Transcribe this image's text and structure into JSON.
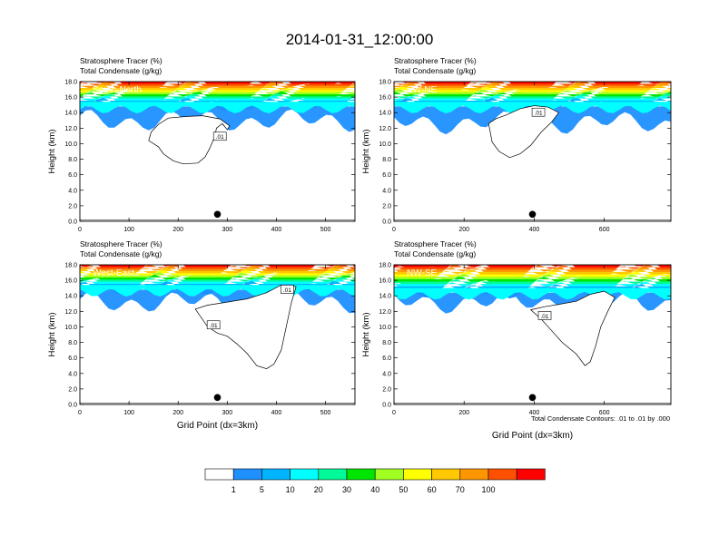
{
  "title": "2014-01-31_12:00:00",
  "footnote": "Total Condensate Contours: .01 to .01 by .000",
  "colorbar": {
    "labels": [
      "1",
      "5",
      "10",
      "20",
      "30",
      "40",
      "50",
      "60",
      "70",
      "100"
    ],
    "colors": [
      "#ffffff",
      "#1e90ff",
      "#00b4ff",
      "#00ffff",
      "#00fa9a",
      "#00e600",
      "#a0ff20",
      "#ffff00",
      "#ffc800",
      "#ff9600",
      "#ff5000",
      "#ff0000"
    ]
  },
  "chart_data": [
    {
      "type": "contour-section",
      "panel": "top-left",
      "label": "South-North",
      "subtitle_1": "Stratosphere Tracer   (%)",
      "subtitle_2": "Total Condensate   (g/kg)",
      "ylabel": "Height (km)",
      "xlabel": "",
      "xlim": [
        0,
        560
      ],
      "xticks": [
        "0",
        "100",
        "200",
        "300",
        "400",
        "500"
      ],
      "ylim": [
        0,
        18
      ],
      "yticks": [
        "0.0",
        "2.0",
        "4.0",
        "6.0",
        "8.0",
        "10.0",
        "12.0",
        "14.0",
        "16.0",
        "18.0"
      ],
      "marker_x": 280,
      "contour_label": ".01",
      "contour_label_at": [
        285,
        10.9
      ],
      "tracer_base_km": 15.0,
      "cloud_base_km": 11.8,
      "condensate_outline": [
        [
          140,
          10.4
        ],
        [
          160,
          9.6
        ],
        [
          170,
          8.7
        ],
        [
          190,
          7.8
        ],
        [
          210,
          7.4
        ],
        [
          240,
          7.5
        ],
        [
          255,
          8.3
        ],
        [
          265,
          9.5
        ],
        [
          275,
          11.0
        ],
        [
          278,
          12.0
        ],
        [
          290,
          12.6
        ],
        [
          300,
          11.8
        ],
        [
          305,
          12.3
        ],
        [
          285,
          13.2
        ],
        [
          250,
          13.6
        ],
        [
          215,
          13.5
        ],
        [
          180,
          13.3
        ],
        [
          160,
          12.5
        ],
        [
          145,
          11.5
        ]
      ],
      "surface_dot_height_km": 0.9
    },
    {
      "type": "contour-section",
      "panel": "top-right",
      "label": "SW-NE",
      "subtitle_1": "Stratosphere Tracer   (%)",
      "subtitle_2": "Total Condensate   (g/kg)",
      "ylabel": "Height (km)",
      "xlabel": "",
      "xlim": [
        0,
        790
      ],
      "xticks": [
        "0",
        "200",
        "400",
        "600"
      ],
      "ylim": [
        0,
        18
      ],
      "yticks": [
        "0.0",
        "2.0",
        "4.0",
        "6.0",
        "8.0",
        "10.0",
        "12.0",
        "14.0",
        "16.0",
        "18.0"
      ],
      "marker_x": 395,
      "contour_label": ".01",
      "contour_label_at": [
        412,
        14.0
      ],
      "tracer_base_km": 15.0,
      "cloud_base_km": 11.5,
      "condensate_outline": [
        [
          270,
          12.6
        ],
        [
          280,
          10.2
        ],
        [
          300,
          9.0
        ],
        [
          330,
          8.2
        ],
        [
          360,
          8.7
        ],
        [
          390,
          9.8
        ],
        [
          420,
          11.5
        ],
        [
          450,
          12.8
        ],
        [
          470,
          14.0
        ],
        [
          440,
          14.7
        ],
        [
          400,
          14.9
        ],
        [
          360,
          14.5
        ],
        [
          320,
          13.7
        ],
        [
          290,
          13.2
        ]
      ],
      "surface_dot_height_km": 0.9
    },
    {
      "type": "contour-section",
      "panel": "bottom-left",
      "label": "West-East",
      "subtitle_1": "Stratosphere Tracer   (%)",
      "subtitle_2": "Total Condensate   (g/kg)",
      "ylabel": "Height (km)",
      "xlabel": "Grid Point (dx=3km)",
      "xlim": [
        0,
        560
      ],
      "xticks": [
        "0",
        "100",
        "200",
        "300",
        "400",
        "500"
      ],
      "ylim": [
        0,
        18
      ],
      "yticks": [
        "0.0",
        "2.0",
        "4.0",
        "6.0",
        "8.0",
        "10.0",
        "12.0",
        "14.0",
        "16.0",
        "18.0"
      ],
      "marker_x": 280,
      "contour_label": ".01",
      "contour_label_at": [
        422,
        14.8
      ],
      "contour_label_2": ".01",
      "contour_label_2_at": [
        272,
        10.2
      ],
      "tracer_base_km": 15.0,
      "cloud_base_km": 12.0,
      "condensate_outline": [
        [
          235,
          12.3
        ],
        [
          260,
          10.0
        ],
        [
          280,
          9.2
        ],
        [
          300,
          8.8
        ],
        [
          320,
          7.8
        ],
        [
          340,
          6.6
        ],
        [
          360,
          5.0
        ],
        [
          380,
          4.6
        ],
        [
          395,
          5.2
        ],
        [
          410,
          7.0
        ],
        [
          420,
          10.0
        ],
        [
          430,
          13.0
        ],
        [
          440,
          15.2
        ],
        [
          410,
          15.4
        ],
        [
          380,
          14.4
        ],
        [
          340,
          13.6
        ],
        [
          300,
          13.2
        ],
        [
          260,
          12.8
        ]
      ],
      "surface_dot_height_km": 0.9
    },
    {
      "type": "contour-section",
      "panel": "bottom-right",
      "label": "NW-SE",
      "subtitle_1": "Stratosphere Tracer   (%)",
      "subtitle_2": "Total Condensate   (g/kg)",
      "ylabel": "Height (km)",
      "xlabel": "Grid Point (dx=3km)",
      "xlim": [
        0,
        790
      ],
      "xticks": [
        "0",
        "200",
        "400",
        "600"
      ],
      "ylim": [
        0,
        18
      ],
      "yticks": [
        "0.0",
        "2.0",
        "4.0",
        "6.0",
        "8.0",
        "10.0",
        "12.0",
        "14.0",
        "16.0",
        "18.0"
      ],
      "marker_x": 395,
      "contour_label": ".01",
      "contour_label_at": [
        430,
        11.4
      ],
      "tracer_base_km": 14.6,
      "cloud_base_km": 12.0,
      "condensate_outline": [
        [
          390,
          12.2
        ],
        [
          420,
          11.0
        ],
        [
          450,
          9.5
        ],
        [
          480,
          8.0
        ],
        [
          520,
          6.5
        ],
        [
          545,
          5.0
        ],
        [
          560,
          5.5
        ],
        [
          575,
          7.5
        ],
        [
          590,
          10.0
        ],
        [
          610,
          12.0
        ],
        [
          630,
          13.8
        ],
        [
          600,
          14.6
        ],
        [
          560,
          14.2
        ],
        [
          520,
          13.3
        ],
        [
          470,
          12.9
        ],
        [
          430,
          12.6
        ]
      ],
      "surface_dot_height_km": 0.9
    }
  ]
}
